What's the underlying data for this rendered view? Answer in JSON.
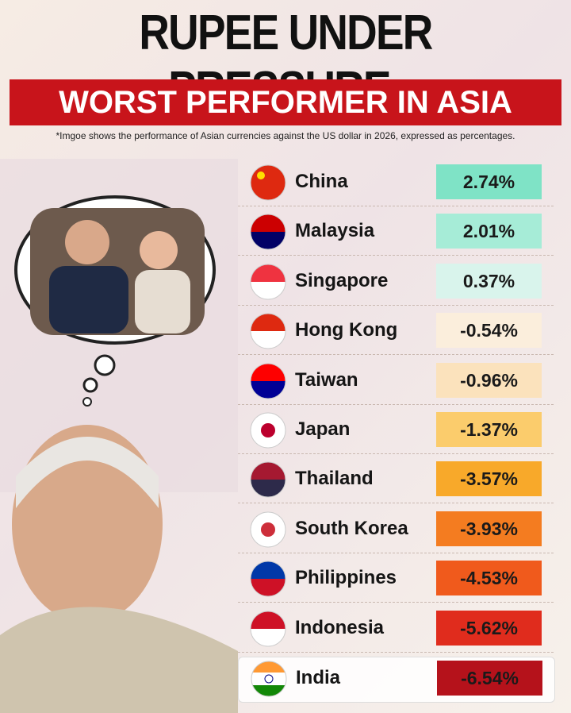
{
  "header": {
    "title": "RUPEE UNDER PRESSURE:",
    "banner": "WORST PERFORMER IN ASIA",
    "note": "*Imgoe shows the performance of Asian currencies against the US dollar in 2026, expressed as percentages."
  },
  "table": {
    "rows": [
      [
        "China",
        "2.74%"
      ],
      [
        "Malaysia",
        "2.01%"
      ],
      [
        "Singapore",
        "0.37%"
      ],
      [
        "Hong Kong",
        "-0.54%"
      ],
      [
        "Taiwan",
        "-0.96%"
      ],
      [
        "Japan",
        "-1.37%"
      ],
      [
        "Thailand",
        "-3.57%"
      ],
      [
        "South Korea",
        "-3.93%"
      ],
      [
        "Philippines",
        "-4.53%"
      ],
      [
        "Indonesia",
        "-5.62%"
      ],
      [
        "India",
        "-6.54%"
      ]
    ]
  }
}
